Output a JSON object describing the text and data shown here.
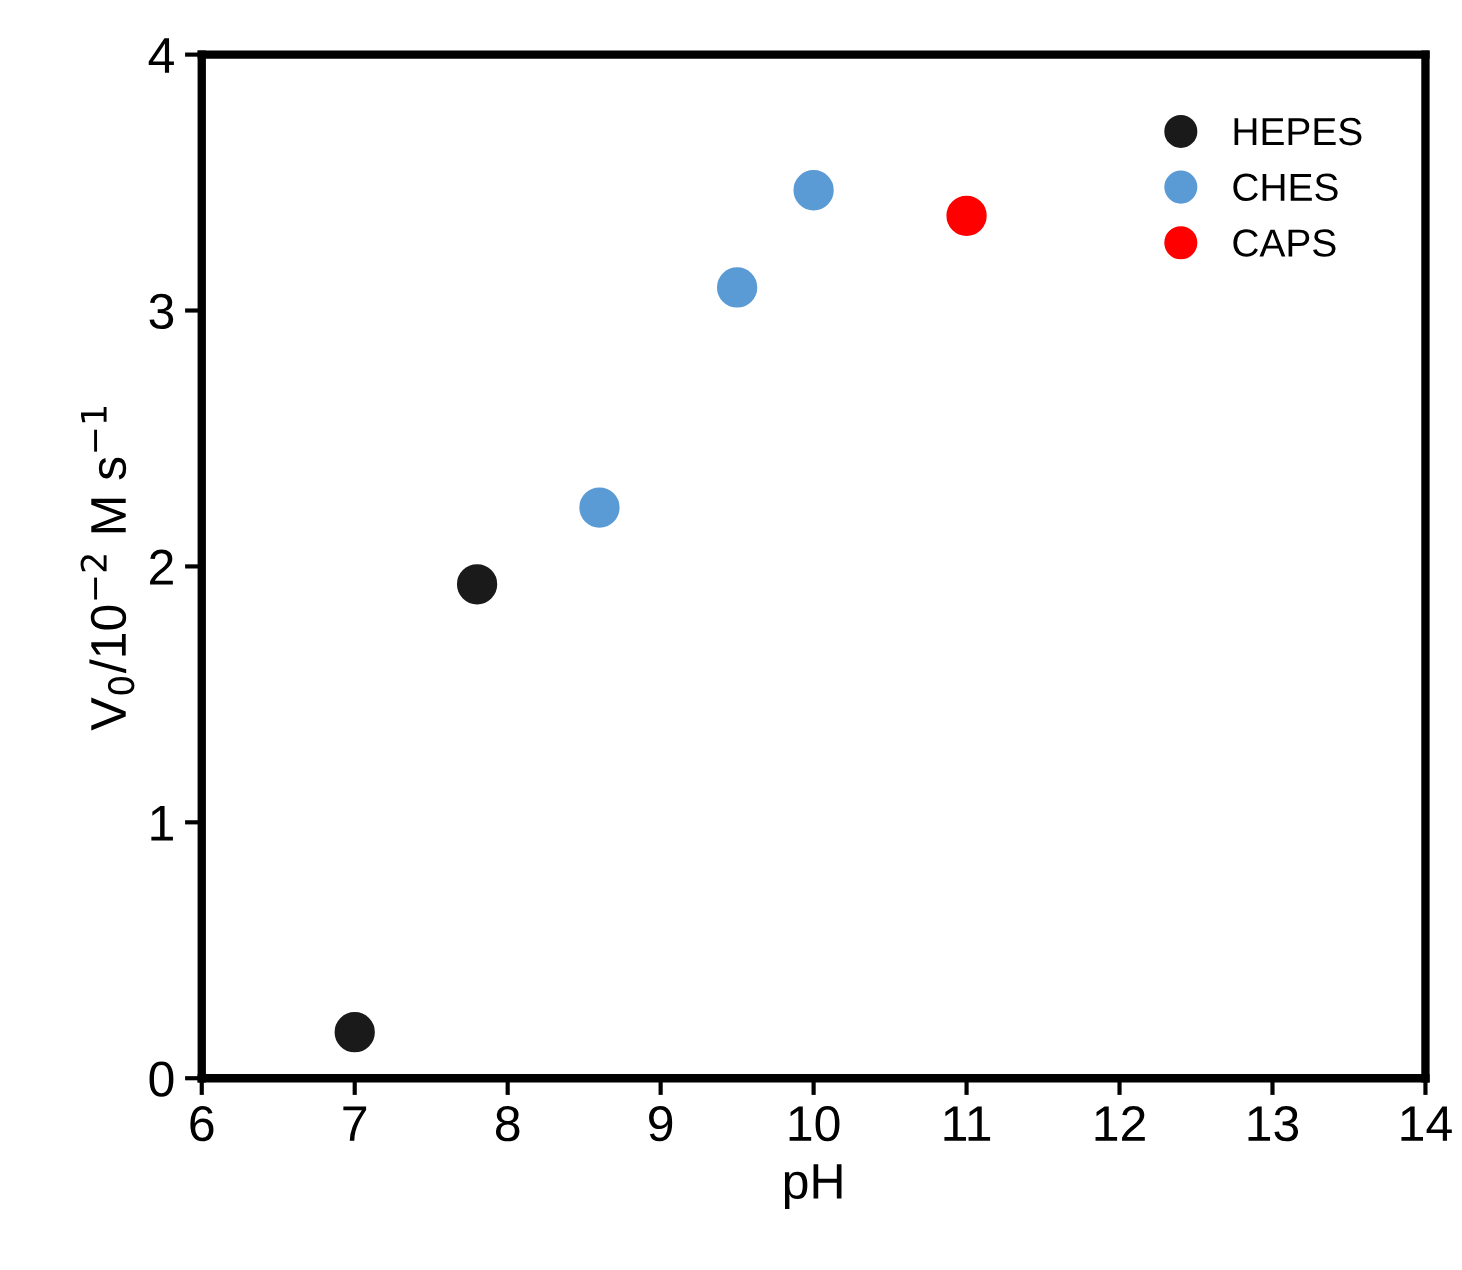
{
  "chart_data": {
    "type": "scatter",
    "xlabel": "pH",
    "ylabel": "V$_{0}$/10$^{−2}$ M s$^{−1}$",
    "xlim": [
      6,
      14
    ],
    "xticks": [
      6,
      7,
      8,
      9,
      10,
      11,
      12,
      13,
      14
    ],
    "ylim": [
      0,
      4
    ],
    "yticks": [
      0,
      1,
      2,
      3,
      4
    ],
    "grid": false,
    "legend": "top right",
    "marker": "circle",
    "series": [
      {
        "name": "HEPES",
        "color": "#1a1a1a",
        "x": [
          7,
          7.8
        ],
        "values": [
          0.18,
          1.93
        ]
      },
      {
        "name": "CHES",
        "color": "#5b9bd5",
        "x": [
          8.6,
          9.5,
          10
        ],
        "values": [
          2.23,
          3.09,
          3.47
        ]
      },
      {
        "name": "CAPS",
        "color": "#ff0000",
        "x": [
          11
        ],
        "values": [
          3.37
        ]
      }
    ]
  }
}
